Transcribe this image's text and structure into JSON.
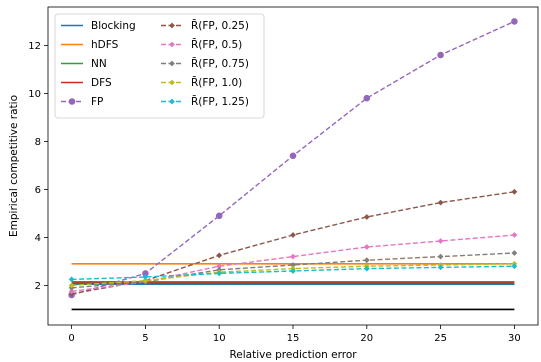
{
  "chart_data": {
    "type": "line",
    "xlabel": "Relative prediction error",
    "ylabel": "Empirical competitive ratio",
    "x": [
      0,
      5,
      10,
      15,
      20,
      25,
      30
    ],
    "xticks": [
      0,
      5,
      10,
      15,
      20,
      25,
      30
    ],
    "yticks": [
      2,
      4,
      6,
      8,
      10,
      12
    ],
    "xlim": [
      -1.6,
      31.6
    ],
    "ylim": [
      0.35,
      13.6
    ],
    "grid": false,
    "legend": "top-left",
    "series": [
      {
        "name": "Blocking",
        "color": "#1f77b4",
        "dashed": false,
        "marker": "none",
        "values": [
          2.05,
          2.05,
          2.05,
          2.05,
          2.05,
          2.05,
          2.05
        ]
      },
      {
        "name": "hDFS",
        "color": "#ff7f0e",
        "dashed": false,
        "marker": "none",
        "values": [
          2.9,
          2.9,
          2.9,
          2.9,
          2.9,
          2.9,
          2.9
        ]
      },
      {
        "name": "NN",
        "color": "#2ca02c",
        "dashed": false,
        "marker": "none",
        "values": [
          2.15,
          2.15,
          2.15,
          2.15,
          2.15,
          2.15,
          2.15
        ]
      },
      {
        "name": "DFS",
        "color": "#d62728",
        "dashed": false,
        "marker": "none",
        "values": [
          2.1,
          2.1,
          2.1,
          2.1,
          2.1,
          2.1,
          2.1
        ]
      },
      {
        "name": "FP",
        "color": "#9467bd",
        "dashed": true,
        "marker": "circle",
        "values": [
          1.6,
          2.5,
          4.9,
          7.4,
          9.8,
          11.6,
          13.0
        ]
      },
      {
        "name": "R̄(FP, 0.25)",
        "color": "#8c564b",
        "dashed": true,
        "marker": "diamond",
        "values": [
          1.65,
          2.2,
          3.25,
          4.1,
          4.85,
          5.45,
          5.9
        ]
      },
      {
        "name": "R̄(FP, 0.5)",
        "color": "#e377c2",
        "dashed": true,
        "marker": "diamond",
        "values": [
          1.75,
          2.15,
          2.8,
          3.2,
          3.6,
          3.85,
          4.1
        ]
      },
      {
        "name": "R̄(FP, 0.75)",
        "color": "#7f7f7f",
        "dashed": true,
        "marker": "diamond",
        "values": [
          1.9,
          2.15,
          2.65,
          2.85,
          3.05,
          3.2,
          3.35
        ]
      },
      {
        "name": "R̄(FP, 1.0)",
        "color": "#bcbd22",
        "dashed": true,
        "marker": "diamond",
        "values": [
          2.0,
          2.2,
          2.55,
          2.7,
          2.8,
          2.85,
          2.9
        ]
      },
      {
        "name": "R̄(FP, 1.25)",
        "color": "#17becf",
        "dashed": true,
        "marker": "diamond",
        "values": [
          2.25,
          2.35,
          2.5,
          2.6,
          2.7,
          2.75,
          2.8
        ]
      }
    ],
    "baseline": {
      "color": "#000000",
      "values": [
        1.0,
        1.0,
        1.0,
        1.0,
        1.0,
        1.0,
        1.0
      ]
    }
  }
}
